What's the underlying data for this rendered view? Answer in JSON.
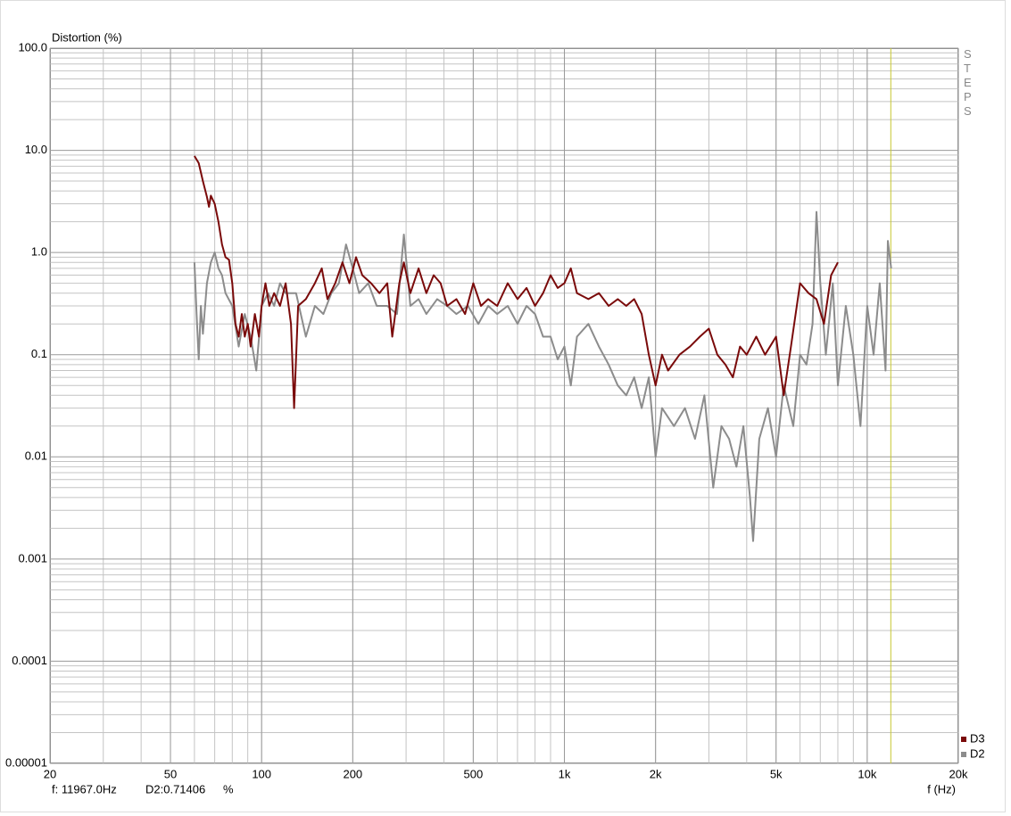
{
  "chart_data": {
    "type": "line",
    "title": "Distortion (%)",
    "x_label": "f (Hz)",
    "side_label": "STEPS",
    "log_x": true,
    "log_y": true,
    "grid": true,
    "legend": "lower right",
    "xlim": [
      20,
      20000
    ],
    "ylim": [
      1e-05,
      100
    ],
    "xticks": [
      20,
      50,
      100,
      200,
      500,
      {
        "value": 1000,
        "label": "1k"
      },
      {
        "value": 2000,
        "label": "2k"
      },
      {
        "value": 5000,
        "label": "5k"
      },
      {
        "value": 10000,
        "label": "10k"
      },
      {
        "value": 20000,
        "label": "20k"
      }
    ],
    "yticks": [
      {
        "value": 1e-05,
        "label": "0.00001"
      },
      {
        "value": 0.0001,
        "label": "0.0001"
      },
      0.001,
      0.01,
      0.1,
      {
        "value": 1,
        "label": "1.0"
      },
      {
        "value": 10,
        "label": "10.0"
      },
      {
        "value": 100,
        "label": "100.0"
      }
    ],
    "cursor": {
      "value": 11967,
      "label": "f: 11967.0Hz",
      "color": "#c8c832"
    },
    "readout": "D2:0.71406",
    "readout_unit": "%",
    "series": [
      {
        "name": "D3",
        "color": "#7a0a0a",
        "x": [
          60,
          62,
          64,
          66,
          67,
          68,
          70,
          72,
          74,
          76,
          78,
          80,
          82,
          84,
          86,
          88,
          90,
          92,
          95,
          98,
          100,
          103,
          106,
          110,
          115,
          120,
          125,
          128,
          132,
          140,
          150,
          158,
          165,
          175,
          185,
          195,
          205,
          215,
          230,
          245,
          260,
          270,
          285,
          295,
          310,
          330,
          350,
          370,
          390,
          410,
          440,
          470,
          500,
          530,
          560,
          600,
          650,
          700,
          750,
          800,
          850,
          900,
          950,
          1000,
          1050,
          1100,
          1200,
          1300,
          1400,
          1500,
          1600,
          1700,
          1800,
          1900,
          2000,
          2100,
          2200,
          2400,
          2600,
          2800,
          3000,
          3200,
          3400,
          3600,
          3800,
          4000,
          4300,
          4600,
          5000,
          5300,
          5600,
          6000,
          6400,
          6800,
          7200,
          7600,
          8000
        ],
        "values": [
          8.8,
          7.5,
          5,
          3.5,
          2.8,
          3.6,
          3,
          2,
          1.2,
          0.9,
          0.85,
          0.5,
          0.2,
          0.15,
          0.25,
          0.15,
          0.2,
          0.12,
          0.25,
          0.15,
          0.3,
          0.5,
          0.3,
          0.4,
          0.3,
          0.5,
          0.2,
          0.03,
          0.3,
          0.35,
          0.5,
          0.7,
          0.35,
          0.5,
          0.8,
          0.5,
          0.9,
          0.6,
          0.5,
          0.4,
          0.5,
          0.15,
          0.5,
          0.8,
          0.4,
          0.7,
          0.4,
          0.6,
          0.5,
          0.3,
          0.35,
          0.25,
          0.5,
          0.3,
          0.35,
          0.3,
          0.5,
          0.35,
          0.45,
          0.3,
          0.4,
          0.6,
          0.45,
          0.5,
          0.7,
          0.4,
          0.35,
          0.4,
          0.3,
          0.35,
          0.3,
          0.35,
          0.25,
          0.1,
          0.05,
          0.1,
          0.07,
          0.1,
          0.12,
          0.15,
          0.18,
          0.1,
          0.08,
          0.06,
          0.12,
          0.1,
          0.15,
          0.1,
          0.15,
          0.04,
          0.12,
          0.5,
          0.4,
          0.35,
          0.2,
          0.6,
          0.8
        ]
      },
      {
        "name": "D2",
        "color": "#8c8c8c",
        "x": [
          60,
          61,
          62,
          63,
          64,
          66,
          68,
          70,
          72,
          74,
          76,
          80,
          84,
          88,
          92,
          96,
          100,
          105,
          110,
          115,
          120,
          130,
          140,
          150,
          160,
          170,
          180,
          190,
          200,
          210,
          225,
          240,
          260,
          280,
          295,
          310,
          330,
          350,
          380,
          410,
          440,
          480,
          520,
          560,
          600,
          650,
          700,
          750,
          800,
          850,
          900,
          950,
          1000,
          1050,
          1100,
          1200,
          1300,
          1400,
          1500,
          1600,
          1700,
          1800,
          1900,
          2000,
          2100,
          2300,
          2500,
          2700,
          2900,
          3100,
          3300,
          3500,
          3700,
          3900,
          4100,
          4200,
          4400,
          4700,
          5000,
          5300,
          5700,
          6000,
          6300,
          6600,
          6800,
          7000,
          7300,
          7700,
          8000,
          8500,
          9000,
          9500,
          10000,
          10500,
          11000,
          11500,
          11700,
          12000
        ],
        "values": [
          0.8,
          0.25,
          0.09,
          0.3,
          0.16,
          0.5,
          0.8,
          1.0,
          0.7,
          0.6,
          0.4,
          0.3,
          0.12,
          0.25,
          0.15,
          0.07,
          0.3,
          0.4,
          0.3,
          0.5,
          0.4,
          0.4,
          0.15,
          0.3,
          0.25,
          0.4,
          0.5,
          1.2,
          0.7,
          0.4,
          0.5,
          0.3,
          0.3,
          0.25,
          1.5,
          0.3,
          0.35,
          0.25,
          0.35,
          0.3,
          0.25,
          0.3,
          0.2,
          0.3,
          0.25,
          0.3,
          0.2,
          0.3,
          0.25,
          0.15,
          0.15,
          0.09,
          0.12,
          0.05,
          0.15,
          0.2,
          0.12,
          0.08,
          0.05,
          0.04,
          0.06,
          0.03,
          0.06,
          0.01,
          0.03,
          0.02,
          0.03,
          0.015,
          0.04,
          0.005,
          0.02,
          0.015,
          0.008,
          0.02,
          0.004,
          0.0015,
          0.015,
          0.03,
          0.01,
          0.05,
          0.02,
          0.1,
          0.08,
          0.2,
          2.5,
          0.5,
          0.1,
          0.5,
          0.05,
          0.3,
          0.1,
          0.02,
          0.3,
          0.1,
          0.5,
          0.07,
          1.3,
          0.7
        ]
      }
    ]
  }
}
